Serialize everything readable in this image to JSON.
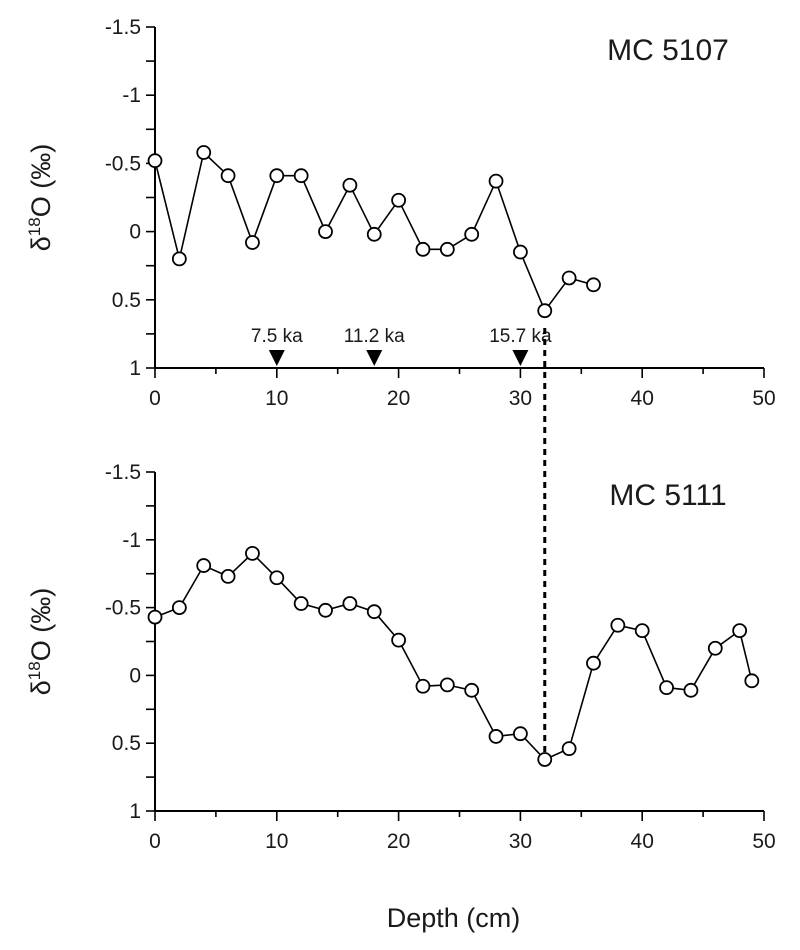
{
  "chart_data": [
    {
      "type": "line",
      "id": "top",
      "title": "MC 5107",
      "ylabel": "δ18O (‰)",
      "ylabel_main": "δ",
      "ylabel_sup": "18",
      "ylabel_rest": "O (‰)",
      "xlabel": "",
      "xlim": [
        0,
        50
      ],
      "ylim": [
        1,
        -1.5
      ],
      "y_inverted": true,
      "x_ticks": [
        "0",
        "10",
        "20",
        "30",
        "40",
        "50"
      ],
      "y_ticks": [
        "-1.5",
        "-1",
        "-0.5",
        "0",
        "0.5",
        "1"
      ],
      "marker": "open-circle",
      "x": [
        0,
        2,
        4,
        6,
        8,
        10,
        12,
        14,
        16,
        18,
        20,
        22,
        24,
        26,
        28,
        30,
        32,
        34,
        36
      ],
      "y": [
        -0.52,
        0.2,
        -0.58,
        -0.41,
        0.08,
        -0.41,
        -0.41,
        0.0,
        -0.34,
        0.02,
        -0.23,
        0.13,
        0.13,
        0.02,
        -0.37,
        0.15,
        0.58,
        0.34,
        0.39
      ],
      "age_markers": [
        {
          "depth": 10,
          "label": "7.5 ka"
        },
        {
          "depth": 18,
          "label": "11.2 ka"
        },
        {
          "depth": 30,
          "label": "15.7 ka"
        }
      ]
    },
    {
      "type": "line",
      "id": "bottom",
      "title": "MC 5111",
      "ylabel": "δ18O (‰)",
      "ylabel_main": "δ",
      "ylabel_sup": "18",
      "ylabel_rest": "O (‰)",
      "xlabel": "Depth (cm)",
      "xlim": [
        0,
        50
      ],
      "ylim": [
        1,
        -1.5
      ],
      "y_inverted": true,
      "x_ticks": [
        "0",
        "10",
        "20",
        "30",
        "40",
        "50"
      ],
      "y_ticks": [
        "-1.5",
        "-1",
        "-0.5",
        "0",
        "0.5",
        "1"
      ],
      "marker": "open-circle",
      "x": [
        0,
        2,
        4,
        6,
        8,
        10,
        12,
        14,
        16,
        18,
        20,
        22,
        24,
        26,
        28,
        30,
        32,
        34,
        36,
        38,
        40,
        42,
        44,
        46,
        48,
        49
      ],
      "y": [
        -0.43,
        -0.5,
        -0.81,
        -0.73,
        -0.9,
        -0.72,
        -0.53,
        -0.48,
        -0.53,
        -0.47,
        -0.26,
        0.08,
        0.07,
        0.11,
        0.45,
        0.43,
        0.62,
        0.54,
        -0.09,
        -0.37,
        -0.33,
        0.09,
        0.11,
        -0.2,
        -0.33,
        0.04
      ]
    }
  ],
  "correlation_line": {
    "depth": 32,
    "style": "dashed"
  }
}
